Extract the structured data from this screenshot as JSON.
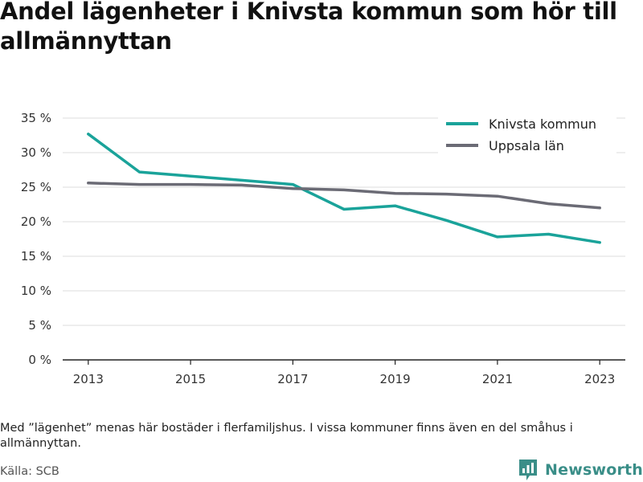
{
  "title": "Andel lägenheter i Knivsta kommun som hör till allmännyttan",
  "footnote": "Med ”lägenhet” menas här bostäder i flerfamiljshus. I vissa kommuner finns även en del småhus i allmännyttan.",
  "source": "Källa: SCB",
  "brand": {
    "name": "Newsworthy",
    "logo_icon": "bar-chart-logo-icon"
  },
  "colors": {
    "knivsta": "#1aa39a",
    "uppsala": "#6b6b75",
    "grid": "#dddddd",
    "axis": "#222222"
  },
  "chart_data": {
    "type": "line",
    "x": [
      2013,
      2014,
      2015,
      2016,
      2017,
      2018,
      2019,
      2020,
      2021,
      2022,
      2023
    ],
    "series": [
      {
        "name": "Knivsta kommun",
        "color": "#1aa39a",
        "values": [
          32.7,
          27.2,
          26.6,
          26.0,
          25.4,
          21.8,
          22.3,
          20.2,
          17.8,
          18.2,
          17.0
        ]
      },
      {
        "name": "Uppsala län",
        "color": "#6b6b75",
        "values": [
          25.6,
          25.4,
          25.4,
          25.3,
          24.8,
          24.6,
          24.1,
          24.0,
          23.7,
          22.6,
          22.0
        ]
      }
    ],
    "xticks": [
      2013,
      2015,
      2017,
      2019,
      2021,
      2023
    ],
    "xtick_labels": [
      "2013",
      "2015",
      "2017",
      "2019",
      "2021",
      "2023"
    ],
    "yticks": [
      0,
      5,
      10,
      15,
      20,
      25,
      30,
      35
    ],
    "ytick_labels": [
      "0 %",
      "5 %",
      "10 %",
      "15 %",
      "20 %",
      "25 %",
      "30 %",
      "35 %"
    ],
    "ylim": [
      0,
      35
    ],
    "xlim": [
      2012.5,
      2023.5
    ],
    "grid": true,
    "legend_position": "top-right",
    "xlabel": "",
    "ylabel": ""
  }
}
